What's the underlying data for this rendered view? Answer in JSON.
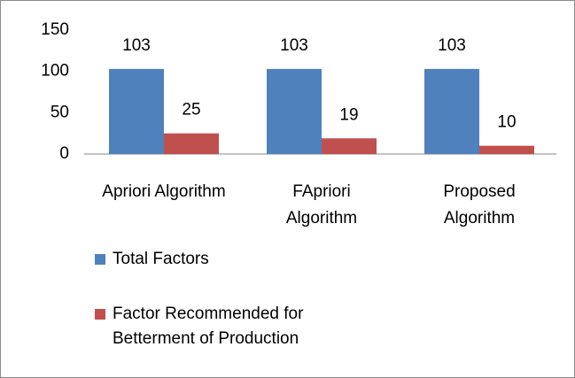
{
  "chart_data": {
    "type": "bar",
    "categories": [
      "Apriori Algorithm",
      "FApriori Algorithm",
      "Proposed Algorithm"
    ],
    "series": [
      {
        "name": "Total Factors",
        "color": "#4f81bd",
        "values": [
          103,
          103,
          103
        ]
      },
      {
        "name": "Factor Recommended for Betterment of Production",
        "color": "#c0504d",
        "values": [
          25,
          19,
          10
        ]
      }
    ],
    "ylim": [
      0,
      150
    ],
    "yticks": [
      0,
      50,
      100,
      150
    ],
    "grid": false,
    "legend": "bottom"
  }
}
